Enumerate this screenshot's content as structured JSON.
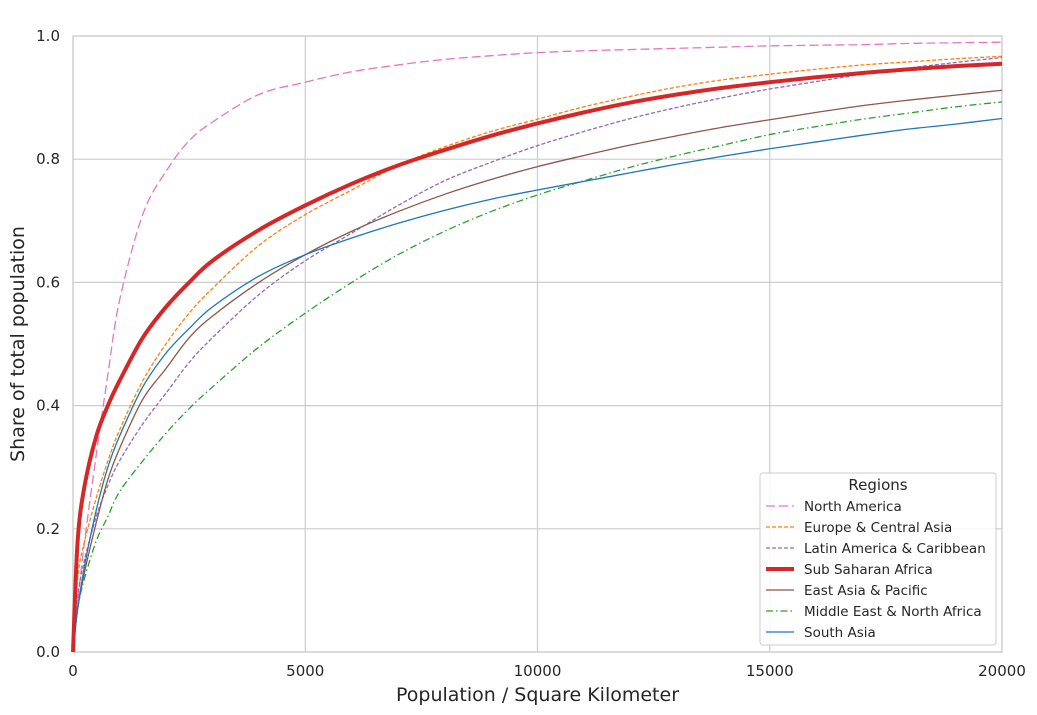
{
  "chart_data": {
    "type": "line",
    "xlabel": "Population / Square Kilometer",
    "ylabel": "Share of total population",
    "xlim": [
      0,
      20000
    ],
    "ylim": [
      0,
      1.0
    ],
    "xticks": [
      0,
      5000,
      10000,
      15000,
      20000
    ],
    "yticks": [
      0.0,
      0.2,
      0.4,
      0.6,
      0.8,
      1.0
    ],
    "xtick_labels": [
      "0",
      "5000",
      "10000",
      "15000",
      "20000"
    ],
    "ytick_labels": [
      "0.0",
      "0.2",
      "0.4",
      "0.6",
      "0.8",
      "1.0"
    ],
    "grid": true,
    "legend": {
      "title": "Regions",
      "position": "lower right"
    },
    "x": [
      0,
      100,
      250,
      500,
      750,
      1000,
      1500,
      2000,
      2500,
      3000,
      4000,
      5000,
      6000,
      7000,
      8000,
      9000,
      10000,
      11000,
      12000,
      13000,
      14000,
      15000,
      16000,
      17000,
      18000,
      19000,
      20000
    ],
    "series": [
      {
        "name": "North America",
        "color": "#e377c2",
        "style": "dashed-long",
        "width": 1.3,
        "values": [
          0,
          0.08,
          0.18,
          0.32,
          0.45,
          0.57,
          0.71,
          0.78,
          0.83,
          0.86,
          0.905,
          0.925,
          0.942,
          0.953,
          0.962,
          0.968,
          0.973,
          0.976,
          0.978,
          0.98,
          0.982,
          0.984,
          0.985,
          0.986,
          0.988,
          0.989,
          0.99
        ]
      },
      {
        "name": "Europe & Central Asia",
        "color": "#ff7f0e",
        "style": "dashed",
        "width": 1.3,
        "values": [
          0,
          0.12,
          0.18,
          0.25,
          0.31,
          0.36,
          0.44,
          0.5,
          0.55,
          0.59,
          0.66,
          0.71,
          0.75,
          0.79,
          0.82,
          0.845,
          0.865,
          0.885,
          0.902,
          0.917,
          0.929,
          0.938,
          0.946,
          0.953,
          0.958,
          0.963,
          0.967
        ]
      },
      {
        "name": "Latin America & Caribbean",
        "color": "#9467bd",
        "style": "dashed",
        "width": 1.3,
        "values": [
          0,
          0.09,
          0.15,
          0.22,
          0.27,
          0.31,
          0.37,
          0.42,
          0.47,
          0.51,
          0.58,
          0.635,
          0.68,
          0.725,
          0.765,
          0.795,
          0.822,
          0.845,
          0.866,
          0.884,
          0.9,
          0.914,
          0.926,
          0.938,
          0.948,
          0.957,
          0.965
        ]
      },
      {
        "name": "Sub Saharan Africa",
        "color": "#d62728",
        "style": "solid",
        "width": 4,
        "values": [
          0,
          0.18,
          0.27,
          0.35,
          0.4,
          0.44,
          0.51,
          0.56,
          0.6,
          0.635,
          0.685,
          0.725,
          0.76,
          0.79,
          0.815,
          0.838,
          0.858,
          0.876,
          0.892,
          0.905,
          0.916,
          0.925,
          0.933,
          0.94,
          0.946,
          0.951,
          0.955
        ]
      },
      {
        "name": "East Asia & Pacific",
        "color": "#8c564b",
        "style": "solid",
        "width": 1.3,
        "values": [
          0,
          0.07,
          0.13,
          0.21,
          0.28,
          0.33,
          0.41,
          0.46,
          0.51,
          0.545,
          0.6,
          0.645,
          0.683,
          0.715,
          0.743,
          0.767,
          0.788,
          0.806,
          0.823,
          0.838,
          0.852,
          0.864,
          0.876,
          0.887,
          0.896,
          0.904,
          0.912
        ]
      },
      {
        "name": "Middle East & North Africa",
        "color": "#2ca02c",
        "style": "dashdot",
        "width": 1.3,
        "values": [
          0,
          0.07,
          0.12,
          0.18,
          0.22,
          0.26,
          0.31,
          0.355,
          0.395,
          0.43,
          0.495,
          0.55,
          0.6,
          0.645,
          0.683,
          0.715,
          0.742,
          0.765,
          0.787,
          0.806,
          0.823,
          0.84,
          0.853,
          0.865,
          0.875,
          0.885,
          0.893
        ]
      },
      {
        "name": "South Asia",
        "color": "#1f77b4",
        "style": "solid",
        "width": 1.3,
        "values": [
          0,
          0.07,
          0.14,
          0.23,
          0.3,
          0.35,
          0.43,
          0.485,
          0.525,
          0.56,
          0.61,
          0.645,
          0.672,
          0.696,
          0.717,
          0.735,
          0.75,
          0.764,
          0.778,
          0.792,
          0.805,
          0.817,
          0.828,
          0.839,
          0.849,
          0.857,
          0.866
        ]
      }
    ]
  }
}
